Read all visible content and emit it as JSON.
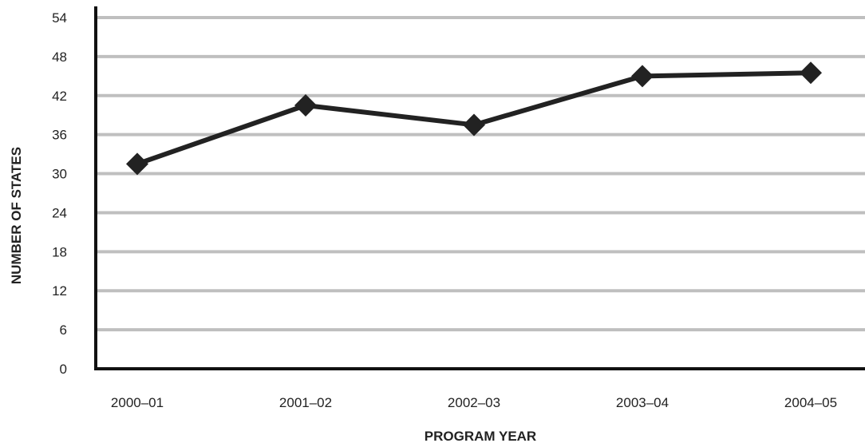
{
  "chart_data": {
    "type": "line",
    "title": "",
    "xlabel": "PROGRAM YEAR",
    "ylabel": "NUMBER OF STATES",
    "categories": [
      "2000–01",
      "2001–02",
      "2002–03",
      "2003–04",
      "2004–05"
    ],
    "series": [
      {
        "values": [
          31.5,
          40.5,
          37.5,
          45,
          45.5
        ]
      }
    ],
    "ylim": [
      0,
      54
    ],
    "yticks": [
      "0",
      "6",
      "12",
      "18",
      "24",
      "30",
      "36",
      "42",
      "48",
      "54"
    ],
    "grid": true,
    "legend": "none",
    "colors": {
      "line": "#222222",
      "grid": "#bfbfbf",
      "axis": "#111111"
    }
  }
}
